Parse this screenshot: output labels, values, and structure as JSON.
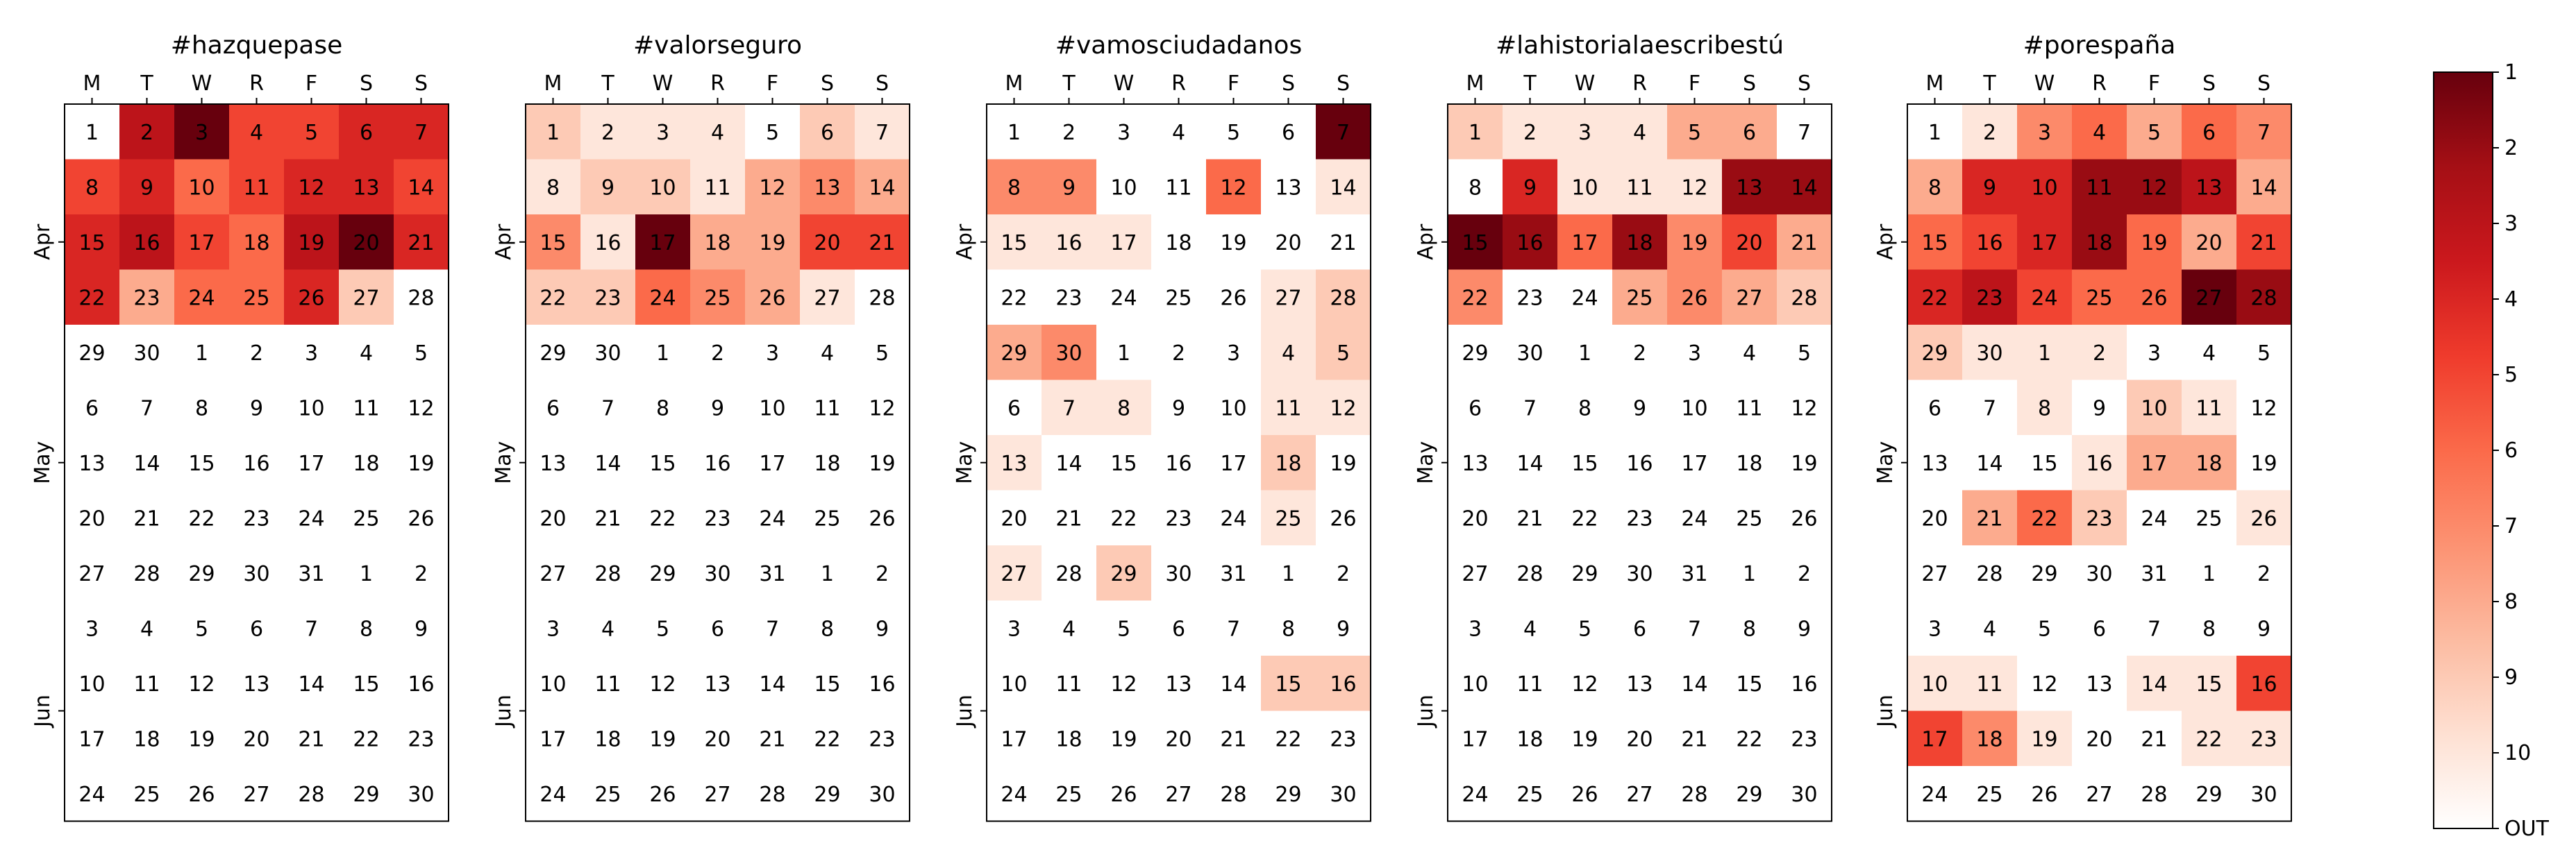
{
  "chart_data": {
    "type": "heatmap",
    "weekday_labels": [
      "M",
      "T",
      "W",
      "R",
      "F",
      "S",
      "S"
    ],
    "months": [
      "Apr",
      "May",
      "Jun"
    ],
    "month_rows": [
      2,
      6,
      10.5
    ],
    "day_numbers": [
      [
        1,
        2,
        3,
        4,
        5,
        6,
        7
      ],
      [
        8,
        9,
        10,
        11,
        12,
        13,
        14
      ],
      [
        15,
        16,
        17,
        18,
        19,
        20,
        21
      ],
      [
        22,
        23,
        24,
        25,
        26,
        27,
        28
      ],
      [
        29,
        30,
        1,
        2,
        3,
        4,
        5
      ],
      [
        6,
        7,
        8,
        9,
        10,
        11,
        12
      ],
      [
        13,
        14,
        15,
        16,
        17,
        18,
        19
      ],
      [
        20,
        21,
        22,
        23,
        24,
        25,
        26
      ],
      [
        27,
        28,
        29,
        30,
        31,
        1,
        2
      ],
      [
        3,
        4,
        5,
        6,
        7,
        8,
        9
      ],
      [
        10,
        11,
        12,
        13,
        14,
        15,
        16
      ],
      [
        17,
        18,
        19,
        20,
        21,
        22,
        23
      ],
      [
        24,
        25,
        26,
        27,
        28,
        29,
        30
      ]
    ],
    "colorbar": {
      "labels": [
        "1",
        "2",
        "3",
        "4",
        "5",
        "6",
        "7",
        "8",
        "9",
        "10",
        "OUT"
      ],
      "colormap": "Reds (reversed: rank 1 darkest, OUT white)"
    },
    "calendars": [
      {
        "title": "#hazquepase",
        "ranks": [
          [
            11,
            3,
            1,
            5,
            5,
            4,
            4
          ],
          [
            5,
            4,
            6,
            5,
            4,
            4,
            5
          ],
          [
            4,
            3,
            5,
            6,
            3,
            1,
            4
          ],
          [
            4,
            8,
            6,
            6,
            4,
            9,
            11
          ],
          [
            11,
            11,
            11,
            11,
            11,
            11,
            11
          ],
          [
            11,
            11,
            11,
            11,
            11,
            11,
            11
          ],
          [
            11,
            11,
            11,
            11,
            11,
            11,
            11
          ],
          [
            11,
            11,
            11,
            11,
            11,
            11,
            11
          ],
          [
            11,
            11,
            11,
            11,
            11,
            11,
            11
          ],
          [
            11,
            11,
            11,
            11,
            11,
            11,
            11
          ],
          [
            11,
            11,
            11,
            11,
            11,
            11,
            11
          ],
          [
            11,
            11,
            11,
            11,
            11,
            11,
            11
          ],
          [
            11,
            11,
            11,
            11,
            11,
            11,
            11
          ]
        ]
      },
      {
        "title": "#valorseguro",
        "ranks": [
          [
            9,
            10,
            10,
            10,
            11,
            9,
            10
          ],
          [
            10,
            9,
            9,
            10,
            8,
            7,
            8
          ],
          [
            7,
            10,
            1,
            8,
            8,
            5,
            5
          ],
          [
            9,
            9,
            6,
            7,
            8,
            10,
            11
          ],
          [
            11,
            11,
            11,
            11,
            11,
            11,
            11
          ],
          [
            11,
            11,
            11,
            11,
            11,
            11,
            11
          ],
          [
            11,
            11,
            11,
            11,
            11,
            11,
            11
          ],
          [
            11,
            11,
            11,
            11,
            11,
            11,
            11
          ],
          [
            11,
            11,
            11,
            11,
            11,
            11,
            11
          ],
          [
            11,
            11,
            11,
            11,
            11,
            11,
            11
          ],
          [
            11,
            11,
            11,
            11,
            11,
            11,
            11
          ],
          [
            11,
            11,
            11,
            11,
            11,
            11,
            11
          ],
          [
            11,
            11,
            11,
            11,
            11,
            11,
            11
          ]
        ]
      },
      {
        "title": "#vamosciudadanos",
        "ranks": [
          [
            11,
            11,
            11,
            11,
            11,
            11,
            1
          ],
          [
            7,
            7,
            11,
            11,
            6,
            11,
            10
          ],
          [
            10,
            10,
            10,
            11,
            11,
            11,
            11
          ],
          [
            11,
            11,
            11,
            11,
            11,
            10,
            9
          ],
          [
            8,
            7,
            11,
            11,
            11,
            10,
            9
          ],
          [
            11,
            10,
            10,
            11,
            11,
            10,
            10
          ],
          [
            10,
            11,
            11,
            11,
            11,
            9,
            11
          ],
          [
            11,
            11,
            11,
            11,
            11,
            10,
            11
          ],
          [
            10,
            11,
            9,
            11,
            11,
            11,
            11
          ],
          [
            11,
            11,
            11,
            11,
            11,
            11,
            11
          ],
          [
            11,
            11,
            11,
            11,
            11,
            9,
            9
          ],
          [
            11,
            11,
            11,
            11,
            11,
            11,
            11
          ],
          [
            11,
            11,
            11,
            11,
            11,
            11,
            11
          ]
        ]
      },
      {
        "title": "#lahistorialaescribestú",
        "ranks": [
          [
            9,
            10,
            10,
            10,
            8,
            8,
            11
          ],
          [
            11,
            4,
            10,
            10,
            10,
            2,
            2
          ],
          [
            1,
            2,
            6,
            2,
            7,
            5,
            8
          ],
          [
            7,
            11,
            11,
            8,
            7,
            8,
            9
          ],
          [
            11,
            11,
            11,
            11,
            11,
            11,
            11
          ],
          [
            11,
            11,
            11,
            11,
            11,
            11,
            11
          ],
          [
            11,
            11,
            11,
            11,
            11,
            11,
            11
          ],
          [
            11,
            11,
            11,
            11,
            11,
            11,
            11
          ],
          [
            11,
            11,
            11,
            11,
            11,
            11,
            11
          ],
          [
            11,
            11,
            11,
            11,
            11,
            11,
            11
          ],
          [
            11,
            11,
            11,
            11,
            11,
            11,
            11
          ],
          [
            11,
            11,
            11,
            11,
            11,
            11,
            11
          ],
          [
            11,
            11,
            11,
            11,
            11,
            11,
            11
          ]
        ]
      },
      {
        "title": "#porespaña",
        "ranks": [
          [
            11,
            10,
            7,
            6,
            8,
            6,
            7
          ],
          [
            8,
            4,
            4,
            2,
            2,
            3,
            8
          ],
          [
            6,
            5,
            4,
            2,
            6,
            8,
            5
          ],
          [
            4,
            3,
            5,
            6,
            6,
            1,
            2
          ],
          [
            9,
            10,
            10,
            10,
            11,
            11,
            11
          ],
          [
            11,
            11,
            10,
            11,
            9,
            10,
            11
          ],
          [
            11,
            11,
            11,
            10,
            8,
            8,
            11
          ],
          [
            11,
            8,
            6,
            9,
            11,
            11,
            10
          ],
          [
            11,
            11,
            11,
            11,
            11,
            11,
            11
          ],
          [
            11,
            11,
            11,
            11,
            11,
            11,
            11
          ],
          [
            10,
            10,
            11,
            11,
            10,
            10,
            5
          ],
          [
            5,
            7,
            10,
            11,
            11,
            10,
            10
          ],
          [
            11,
            11,
            11,
            11,
            11,
            11,
            11
          ]
        ]
      }
    ]
  }
}
